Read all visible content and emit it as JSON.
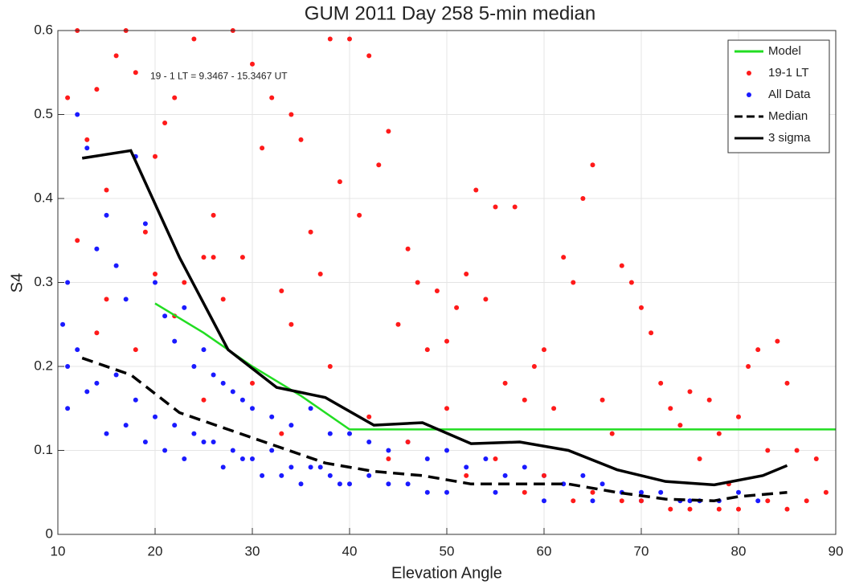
{
  "chart_data": {
    "type": "scatter",
    "title": "GUM 2011 Day 258  5-min median",
    "xlabel": "Elevation Angle",
    "ylabel": "S4",
    "annotation": "19 - 1 LT = 9.3467 - 15.3467 UT",
    "xlim": [
      10,
      90
    ],
    "ylim": [
      0,
      0.6
    ],
    "xticks": [
      10,
      20,
      30,
      40,
      50,
      60,
      70,
      80,
      90
    ],
    "yticks": [
      0,
      0.1,
      0.2,
      0.3,
      0.4,
      0.5,
      0.6
    ],
    "grid": true,
    "legend": "upper right",
    "series": [
      {
        "name": "Model",
        "color": "#22dd22",
        "mode": "line",
        "dash": false,
        "x": [
          20,
          25,
          30,
          35,
          40,
          90
        ],
        "values": [
          0.275,
          0.24,
          0.2,
          0.165,
          0.125,
          0.125
        ]
      },
      {
        "name": "19-1 LT",
        "color": "#ff1a1a",
        "mode": "markers",
        "x": [
          11,
          12,
          13,
          14,
          15,
          16,
          17,
          18,
          19,
          20,
          21,
          22,
          23,
          24,
          25,
          26,
          27,
          28,
          29,
          30,
          31,
          32,
          33,
          34,
          35,
          36,
          37,
          38,
          39,
          40,
          41,
          42,
          43,
          44,
          45,
          46,
          47,
          48,
          49,
          50,
          51,
          52,
          53,
          54,
          55,
          56,
          57,
          58,
          59,
          60,
          61,
          62,
          63,
          64,
          65,
          66,
          67,
          68,
          69,
          70,
          71,
          72,
          73,
          74,
          75,
          76,
          77,
          78,
          79,
          80,
          81,
          82,
          83,
          84,
          85,
          86,
          87,
          88,
          89,
          12,
          15,
          18,
          22,
          26,
          30,
          34,
          38,
          42,
          46,
          50,
          55,
          60,
          65,
          70,
          75,
          80,
          85,
          14,
          20,
          25,
          33,
          44,
          52,
          58,
          63,
          68,
          73,
          78,
          83
        ],
        "values": [
          0.52,
          0.6,
          0.47,
          0.53,
          0.41,
          0.57,
          0.6,
          0.55,
          0.36,
          0.45,
          0.49,
          0.52,
          0.3,
          0.59,
          0.33,
          0.38,
          0.28,
          0.6,
          0.33,
          0.56,
          0.46,
          0.52,
          0.29,
          0.5,
          0.47,
          0.36,
          0.31,
          0.59,
          0.42,
          0.59,
          0.38,
          0.57,
          0.44,
          0.48,
          0.25,
          0.34,
          0.3,
          0.22,
          0.29,
          0.23,
          0.27,
          0.31,
          0.41,
          0.28,
          0.39,
          0.18,
          0.39,
          0.16,
          0.2,
          0.22,
          0.15,
          0.33,
          0.3,
          0.4,
          0.44,
          0.16,
          0.12,
          0.32,
          0.3,
          0.27,
          0.24,
          0.18,
          0.15,
          0.13,
          0.17,
          0.09,
          0.16,
          0.12,
          0.06,
          0.14,
          0.2,
          0.22,
          0.1,
          0.23,
          0.18,
          0.1,
          0.04,
          0.09,
          0.05,
          0.35,
          0.28,
          0.22,
          0.26,
          0.33,
          0.18,
          0.25,
          0.2,
          0.14,
          0.11,
          0.15,
          0.09,
          0.07,
          0.05,
          0.04,
          0.03,
          0.03,
          0.03,
          0.24,
          0.31,
          0.16,
          0.12,
          0.09,
          0.07,
          0.05,
          0.04,
          0.04,
          0.03,
          0.03,
          0.04
        ]
      },
      {
        "name": "All Data",
        "color": "#1a1aff",
        "mode": "markers",
        "x": [
          10.5,
          11,
          12,
          13,
          14,
          15,
          16,
          17,
          18,
          19,
          20,
          21,
          22,
          23,
          24,
          25,
          26,
          27,
          28,
          29,
          30,
          32,
          34,
          36,
          38,
          40,
          42,
          44,
          46,
          48,
          50,
          52,
          54,
          56,
          58,
          60,
          62,
          64,
          66,
          68,
          70,
          72,
          74,
          76,
          78,
          80,
          82,
          11,
          12,
          14,
          16,
          18,
          20,
          22,
          24,
          26,
          28,
          30,
          32,
          34,
          36,
          38,
          40,
          42,
          44,
          46,
          48,
          50,
          55,
          60,
          65,
          70,
          75,
          11,
          13,
          15,
          17,
          19,
          21,
          23,
          25,
          27,
          29,
          31,
          33,
          35,
          37,
          39
        ],
        "values": [
          0.25,
          0.3,
          0.5,
          0.46,
          0.34,
          0.38,
          0.32,
          0.28,
          0.45,
          0.37,
          0.3,
          0.26,
          0.23,
          0.27,
          0.2,
          0.22,
          0.19,
          0.18,
          0.17,
          0.16,
          0.15,
          0.14,
          0.13,
          0.15,
          0.12,
          0.12,
          0.11,
          0.1,
          0.11,
          0.09,
          0.1,
          0.08,
          0.09,
          0.07,
          0.08,
          0.07,
          0.06,
          0.07,
          0.06,
          0.05,
          0.05,
          0.05,
          0.04,
          0.04,
          0.04,
          0.05,
          0.04,
          0.2,
          0.22,
          0.18,
          0.19,
          0.16,
          0.14,
          0.13,
          0.12,
          0.11,
          0.1,
          0.09,
          0.1,
          0.08,
          0.08,
          0.07,
          0.06,
          0.07,
          0.06,
          0.06,
          0.05,
          0.05,
          0.05,
          0.04,
          0.04,
          0.04,
          0.04,
          0.15,
          0.17,
          0.12,
          0.13,
          0.11,
          0.1,
          0.09,
          0.11,
          0.08,
          0.09,
          0.07,
          0.07,
          0.06,
          0.08,
          0.06
        ]
      },
      {
        "name": "Median",
        "color": "#000000",
        "mode": "line",
        "dash": true,
        "x": [
          12.5,
          17.5,
          22.5,
          27.5,
          32.5,
          37.5,
          42.5,
          47.5,
          52.5,
          57.5,
          62.5,
          67.5,
          72.5,
          77.5,
          80,
          85
        ],
        "values": [
          0.21,
          0.19,
          0.145,
          0.125,
          0.105,
          0.085,
          0.075,
          0.07,
          0.06,
          0.06,
          0.06,
          0.05,
          0.042,
          0.04,
          0.045,
          0.05
        ]
      },
      {
        "name": "3 sigma",
        "color": "#000000",
        "mode": "line",
        "dash": false,
        "x": [
          12.5,
          17.5,
          22.5,
          27.5,
          32.5,
          37.5,
          42.5,
          47.5,
          52.5,
          57.5,
          62.5,
          67.5,
          72.5,
          77.5,
          82.5,
          85
        ],
        "values": [
          0.448,
          0.457,
          0.33,
          0.22,
          0.175,
          0.163,
          0.13,
          0.133,
          0.108,
          0.11,
          0.1,
          0.077,
          0.063,
          0.059,
          0.07,
          0.082
        ]
      }
    ]
  }
}
